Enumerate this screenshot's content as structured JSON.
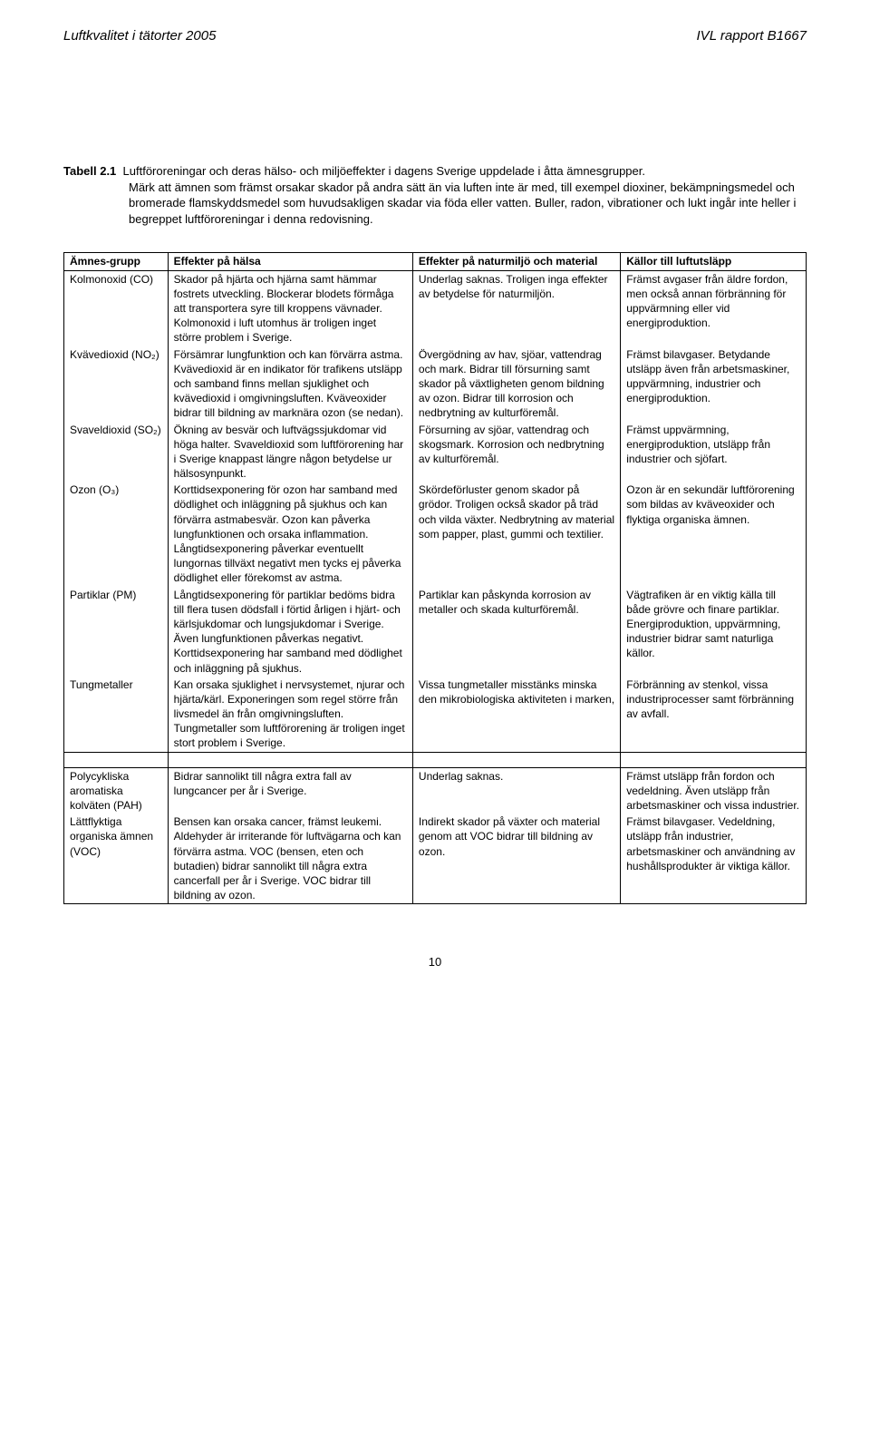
{
  "header": {
    "left": "Luftkvalitet i tätorter 2005",
    "right": "IVL rapport B1667"
  },
  "caption": {
    "label": "Tabell 2.1",
    "line1": "Luftföroreningar och deras hälso- och miljöeffekter i dagens Sverige uppdelade i åtta ämnesgrupper.",
    "line2": "Märk att ämnen som främst orsakar skador på andra sätt än via luften inte är med, till exempel dioxiner, bekämpningsmedel och bromerade flamskyddsmedel som huvudsakligen skadar via föda eller vatten. Buller, radon, vibrationer och lukt ingår inte heller i begreppet luftföroreningar i denna redovisning."
  },
  "table": {
    "headers": [
      "Ämnes-grupp",
      "Effekter på hälsa",
      "Effekter på naturmiljö och material",
      "Källor till luftutsläpp"
    ],
    "rows": [
      {
        "c0": "Kolmonoxid (CO)",
        "c1": "Skador på hjärta och hjärna samt hämmar fostrets utveckling. Blockerar blodets förmåga att transportera syre till kroppens vävnader. Kolmonoxid i luft utomhus är troligen inget större problem i Sverige.",
        "c2": "Underlag saknas. Troligen inga effekter av betydelse för naturmiljön.",
        "c3": "Främst avgaser från äldre fordon, men också annan förbränning för uppvärmning eller vid energiproduktion."
      },
      {
        "c0": "Kvävedioxid (NO₂)",
        "c1": "Försämrar lungfunktion och kan förvärra astma. Kvävedioxid är en indikator för trafikens utsläpp och samband finns mellan sjuklighet och kvävedioxid i omgivningsluften. Kväveoxider bidrar till bildning av marknära ozon (se nedan).",
        "c2": "Övergödning av hav, sjöar, vattendrag och mark. Bidrar till försurning samt skador på växtligheten genom bildning av ozon. Bidrar till korrosion och nedbrytning av kulturföremål.",
        "c3": "Främst bilavgaser. Betydande utsläpp även från arbetsmaskiner, uppvärmning, industrier och energiproduktion."
      },
      {
        "c0": "Svaveldioxid (SO₂)",
        "c1": "Ökning av besvär och luftvägssjukdomar vid höga halter. Svaveldioxid som luftförorening har i Sverige knappast längre någon betydelse ur hälsosynpunkt.",
        "c2": "Försurning av sjöar, vattendrag och skogsmark. Korrosion och nedbrytning av kulturföremål.",
        "c3": "Främst uppvärmning, energiproduktion, utsläpp från industrier och sjöfart."
      },
      {
        "c0": "Ozon (O₃)",
        "c1": "Korttidsexponering för ozon har samband med dödlighet och inläggning på sjukhus och kan förvärra astmabesvär. Ozon kan påverka lungfunktionen och orsaka inflammation. Långtidsexponering påverkar eventuellt lungornas tillväxt negativt men tycks ej påverka dödlighet eller förekomst av astma.",
        "c2": "Skördeförluster genom skador på grödor. Troligen också skador på träd och vilda växter. Nedbrytning av material som papper, plast, gummi och textilier.",
        "c3": "Ozon är en sekundär luftförorening som bildas av kväveoxider och flyktiga organiska ämnen."
      },
      {
        "c0": "Partiklar (PM)",
        "c1": "Långtidsexponering för partiklar bedöms bidra till flera tusen dödsfall i förtid årligen i hjärt- och kärlsjukdomar och lungsjukdomar i Sverige. Även lungfunktionen påverkas negativt. Korttidsexponering har samband med dödlighet och inläggning på sjukhus.",
        "c2": "Partiklar kan påskynda korrosion av metaller och skada kulturföremål.",
        "c3": "Vägtrafiken är en viktig källa till både grövre och finare partiklar. Energiproduktion, uppvärmning, industrier bidrar samt naturliga källor."
      },
      {
        "c0": "Tungmetaller",
        "c1": "Kan orsaka sjuklighet i nervsystemet, njurar och hjärta/kärl. Exponeringen som regel större från livsmedel än från omgivningsluften. Tungmetaller som luftförorening är troligen inget stort problem i Sverige.",
        "c2": "Vissa tungmetaller misstänks minska den mikrobiologiska aktiviteten i marken,",
        "c3": "Förbränning av stenkol, vissa industriprocesser samt förbränning av avfall."
      },
      {
        "c0": "Polycykliska aromatiska kolväten (PAH)",
        "c1": "Bidrar sannolikt till några extra fall av lungcancer per år i Sverige.",
        "c2": "Underlag saknas.",
        "c3": "Främst utsläpp från fordon och vedeldning. Även utsläpp från arbetsmaskiner och vissa industrier."
      },
      {
        "c0": "Lättflyktiga organiska ämnen (VOC)",
        "c1": "Bensen kan orsaka cancer, främst leukemi. Aldehyder är irriterande för luftvägarna och kan förvärra astma. VOC (bensen, eten och butadien) bidrar sannolikt till några extra cancerfall per år i Sverige. VOC bidrar till bildning av ozon.",
        "c2": "Indirekt skador på växter och material genom att VOC bidrar till bildning av ozon.",
        "c3": "Främst bilavgaser. Vedeldning, utsläpp från industrier, arbetsmaskiner och användning av hushållsprodukter är viktiga källor."
      }
    ]
  },
  "page_number": "10"
}
